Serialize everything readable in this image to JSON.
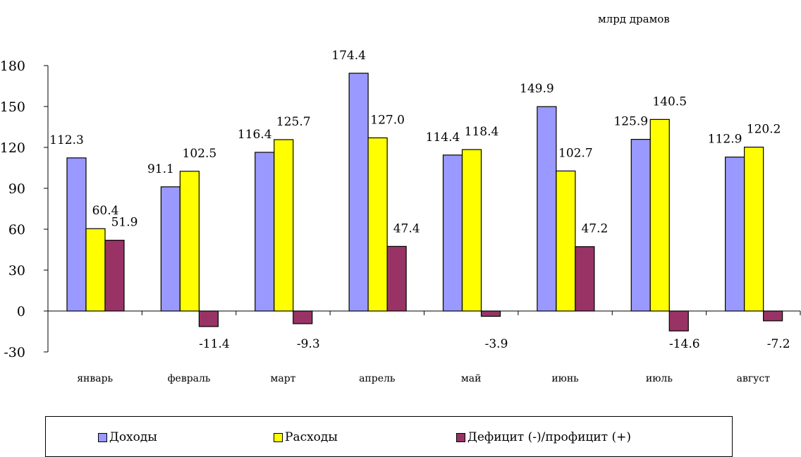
{
  "unit_label": "млрд драмов",
  "chart_data": {
    "type": "bar",
    "categories": [
      "январь",
      "февраль",
      "март",
      "апрель",
      "май",
      "июнь",
      "июль",
      "август"
    ],
    "series": [
      {
        "name": "Доходы",
        "color": "#9999ff",
        "values": [
          112.3,
          91.1,
          116.4,
          174.4,
          114.4,
          149.9,
          125.9,
          112.9
        ]
      },
      {
        "name": "Расходы",
        "color": "#ffff00",
        "values": [
          60.4,
          102.5,
          125.7,
          127.0,
          118.4,
          102.7,
          140.5,
          120.2
        ]
      },
      {
        "name": "Дефицит (-)/профицит (+)",
        "color": "#993366",
        "values": [
          51.9,
          -11.4,
          -9.3,
          47.4,
          -3.9,
          47.2,
          -14.6,
          -7.2
        ]
      }
    ],
    "data_labels": [
      [
        "112.3",
        "91.1",
        "116.4",
        "174.4",
        "114.4",
        "149.9",
        "125.9",
        "112.9"
      ],
      [
        "60.4",
        "102.5",
        "125.7",
        "127.0",
        "118.4",
        "102.7",
        "140.5",
        "120.2"
      ],
      [
        "51.9",
        "-11.4",
        "-9.3",
        "47.4",
        "-3.9",
        "47.2",
        "-14.6",
        "-7.2"
      ]
    ],
    "yticks": [
      "-30",
      "0",
      "30",
      "60",
      "90",
      "120",
      "150",
      "180"
    ],
    "ylim": [
      -30,
      180
    ],
    "grid": false,
    "legend_position": "bottom"
  }
}
